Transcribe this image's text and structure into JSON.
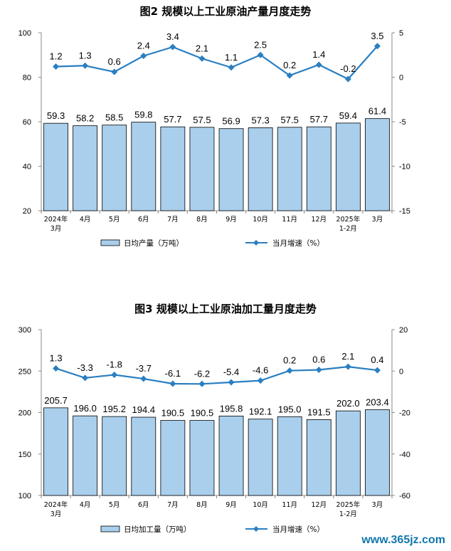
{
  "chart_data": [
    {
      "type": "bar+line",
      "title": "图2  规模以上工业原油产量月度走势",
      "categories": [
        [
          "2024年",
          "3月"
        ],
        [
          "4月"
        ],
        [
          "5月"
        ],
        [
          "6月"
        ],
        [
          "7月"
        ],
        [
          "8月"
        ],
        [
          "9月"
        ],
        [
          "10月"
        ],
        [
          "11月"
        ],
        [
          "12月"
        ],
        [
          "2025年",
          "1-2月"
        ],
        [
          "3月"
        ]
      ],
      "y_left": {
        "min": 20,
        "max": 100,
        "ticks": [
          20,
          40,
          60,
          80,
          100
        ]
      },
      "y_right": {
        "min": -15,
        "max": 5,
        "ticks": [
          5,
          0,
          -5,
          -10,
          -15
        ]
      },
      "series": [
        {
          "name": "日均产量（万吨）",
          "kind": "bar",
          "axis": "left",
          "color": "#a9cfec",
          "values": [
            59.3,
            58.2,
            58.5,
            59.8,
            57.7,
            57.5,
            56.9,
            57.3,
            57.5,
            57.7,
            59.4,
            61.4
          ],
          "labels": [
            "59.3",
            "58.2",
            "58.5",
            "59.8",
            "57.7",
            "57.5",
            "56.9",
            "57.3",
            "57.5",
            "57.7",
            "59.4",
            "61.4"
          ]
        },
        {
          "name": "当月增速（%）",
          "kind": "line",
          "axis": "right",
          "color": "#2a7fc1",
          "values": [
            1.2,
            1.3,
            0.6,
            2.4,
            3.4,
            2.1,
            1.1,
            2.5,
            0.2,
            1.4,
            -0.2,
            3.5
          ],
          "labels": [
            "1.2",
            "1.3",
            "0.6",
            "2.4",
            "3.4",
            "2.1",
            "1.1",
            "2.5",
            "0.2",
            "1.4",
            "-0.2",
            "3.5"
          ]
        }
      ]
    },
    {
      "type": "bar+line",
      "title": "图3  规模以上工业原油加工量月度走势",
      "categories": [
        [
          "2024年",
          "3月"
        ],
        [
          "4月"
        ],
        [
          "5月"
        ],
        [
          "6月"
        ],
        [
          "7月"
        ],
        [
          "8月"
        ],
        [
          "9月"
        ],
        [
          "10月"
        ],
        [
          "11月"
        ],
        [
          "12月"
        ],
        [
          "2025年",
          "1-2月"
        ],
        [
          "3月"
        ]
      ],
      "y_left": {
        "min": 100,
        "max": 300,
        "ticks": [
          100,
          150,
          200,
          250,
          300
        ]
      },
      "y_right": {
        "min": -60,
        "max": 20,
        "ticks": [
          20,
          0,
          -20,
          -40,
          -60
        ]
      },
      "series": [
        {
          "name": "日均加工量（万吨）",
          "kind": "bar",
          "axis": "left",
          "color": "#a9cfec",
          "values": [
            205.7,
            196.0,
            195.2,
            194.4,
            190.5,
            190.5,
            195.8,
            192.1,
            195.0,
            191.5,
            202.0,
            203.4
          ],
          "labels": [
            "205.7",
            "196.0",
            "195.2",
            "194.4",
            "190.5",
            "190.5",
            "195.8",
            "192.1",
            "195.0",
            "191.5",
            "202.0",
            "203.4"
          ]
        },
        {
          "name": "当月增速（%）",
          "kind": "line",
          "axis": "right",
          "color": "#2a7fc1",
          "values": [
            1.3,
            -3.3,
            -1.8,
            -3.7,
            -6.1,
            -6.2,
            -5.4,
            -4.6,
            0.2,
            0.6,
            2.1,
            0.4
          ],
          "labels": [
            "1.3",
            "-3.3",
            "-1.8",
            "-3.7",
            "-6.1",
            "-6.2",
            "-5.4",
            "-4.6",
            "0.2",
            "0.6",
            "2.1",
            "0.4"
          ]
        }
      ]
    }
  ],
  "watermark": "www.365jz.com"
}
